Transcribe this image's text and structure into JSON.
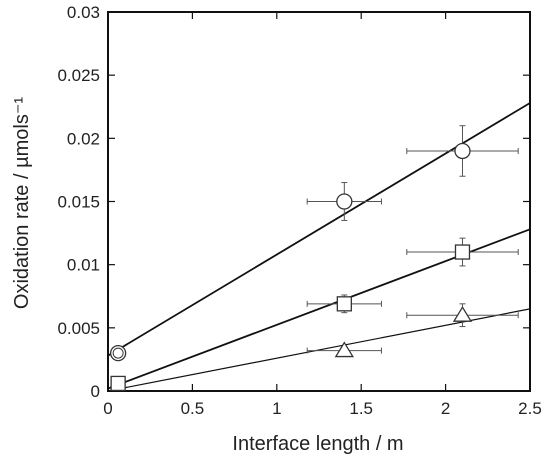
{
  "chart_data": {
    "type": "scatter",
    "title": "",
    "xlabel": "Interface length / m",
    "ylabel": "Oxidation rate / µmols⁻¹",
    "xlim": [
      0,
      2.5
    ],
    "ylim": [
      0,
      0.03
    ],
    "x_ticks": [
      0,
      0.5,
      1,
      1.5,
      2,
      2.5
    ],
    "x_tick_labels": [
      "0",
      "0.5",
      "1",
      "1.5",
      "2",
      "2.5"
    ],
    "y_ticks": [
      0,
      0.005,
      0.01,
      0.015,
      0.02,
      0.025,
      0.03
    ],
    "y_tick_labels": [
      "0",
      "0.005",
      "0.01",
      "0.015",
      "0.02",
      "0.025",
      "0.03"
    ],
    "grid": false,
    "legend": "none",
    "series": [
      {
        "marker": "circle",
        "points": [
          {
            "x": 0.06,
            "y": 0.003,
            "xerr": 0.03,
            "yerr": 0.0003
          },
          {
            "x": 1.4,
            "y": 0.015,
            "xerr": 0.22,
            "yerr": 0.0015
          },
          {
            "x": 2.1,
            "y": 0.019,
            "xerr": 0.33,
            "yerr": 0.002
          }
        ],
        "fit": {
          "x": [
            0,
            2.5
          ],
          "y": [
            0.0028,
            0.0228
          ]
        }
      },
      {
        "marker": "square",
        "points": [
          {
            "x": 0.06,
            "y": 0.0006,
            "xerr": 0.03,
            "yerr": 0.0002
          },
          {
            "x": 1.4,
            "y": 0.0069,
            "xerr": 0.22,
            "yerr": 0.0007
          },
          {
            "x": 2.1,
            "y": 0.011,
            "xerr": 0.33,
            "yerr": 0.0011
          }
        ],
        "fit": {
          "x": [
            0,
            2.5
          ],
          "y": [
            0.0002,
            0.0128
          ]
        }
      },
      {
        "marker": "triangle",
        "points": [
          {
            "x": 1.4,
            "y": 0.0032,
            "xerr": 0.22,
            "yerr": 0.0003
          },
          {
            "x": 2.1,
            "y": 0.006,
            "xerr": 0.33,
            "yerr": 0.0009
          }
        ],
        "fit": {
          "x": [
            0,
            2.5
          ],
          "y": [
            0.0,
            0.0065
          ]
        }
      }
    ]
  }
}
